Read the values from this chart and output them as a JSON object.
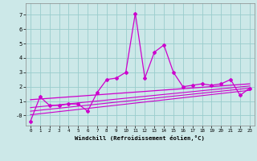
{
  "xlabel": "Windchill (Refroidissement éolien,°C)",
  "bg_color": "#cce8e8",
  "grid_color": "#99cccc",
  "line_color": "#cc00cc",
  "x_values": [
    0,
    1,
    2,
    3,
    4,
    5,
    6,
    7,
    8,
    9,
    10,
    11,
    12,
    13,
    14,
    15,
    16,
    17,
    18,
    19,
    20,
    21,
    22,
    23
  ],
  "scatter_y": [
    -0.4,
    1.3,
    0.7,
    0.7,
    0.8,
    0.8,
    0.3,
    1.6,
    2.5,
    2.6,
    3.0,
    7.1,
    2.6,
    4.4,
    4.9,
    3.0,
    2.0,
    2.1,
    2.2,
    2.1,
    2.2,
    2.5,
    1.4,
    1.9
  ],
  "trend1_x": [
    0,
    23
  ],
  "trend1_y": [
    0.05,
    1.75
  ],
  "trend2_x": [
    0,
    23
  ],
  "trend2_y": [
    0.3,
    1.9
  ],
  "trend3_x": [
    0,
    23
  ],
  "trend3_y": [
    0.55,
    2.05
  ],
  "trend4_x": [
    0,
    23
  ],
  "trend4_y": [
    1.1,
    2.2
  ],
  "xlim": [
    -0.5,
    23.5
  ],
  "ylim": [
    -0.7,
    7.8
  ],
  "yticks": [
    0,
    1,
    2,
    3,
    4,
    5,
    6,
    7
  ],
  "ytick_labels": [
    "-0",
    "1",
    "2",
    "3",
    "4",
    "5",
    "6",
    "7"
  ],
  "xticks": [
    0,
    1,
    2,
    3,
    4,
    5,
    6,
    7,
    8,
    9,
    10,
    11,
    12,
    13,
    14,
    15,
    16,
    17,
    18,
    19,
    20,
    21,
    22,
    23
  ]
}
